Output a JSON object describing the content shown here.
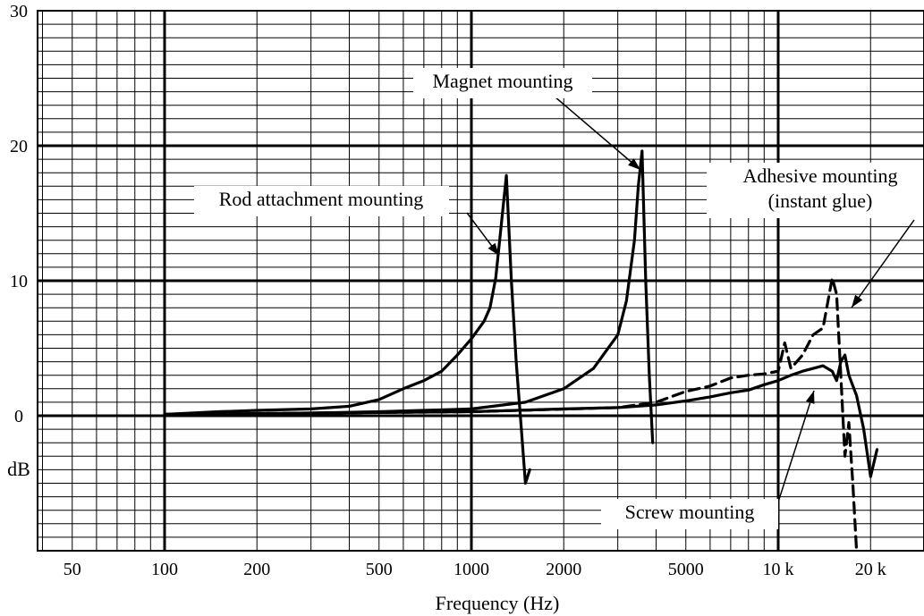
{
  "chart_data": {
    "type": "line",
    "xlabel": "Frequency (Hz)",
    "ylabel": "dB",
    "x_scale": "log",
    "xlim": [
      40,
      30000
    ],
    "ylim": [
      -10,
      30
    ],
    "grid": true,
    "x_ticks": [
      {
        "value": 50,
        "label": "50"
      },
      {
        "value": 100,
        "label": "100"
      },
      {
        "value": 200,
        "label": "200"
      },
      {
        "value": 500,
        "label": "500"
      },
      {
        "value": 1000,
        "label": "1000"
      },
      {
        "value": 2000,
        "label": "2000"
      },
      {
        "value": 5000,
        "label": "5000"
      },
      {
        "value": 10000,
        "label": "10 k"
      },
      {
        "value": 20000,
        "label": "20 k"
      }
    ],
    "y_ticks": [
      {
        "value": 30,
        "label": "30"
      },
      {
        "value": 20,
        "label": "20"
      },
      {
        "value": 10,
        "label": "10"
      },
      {
        "value": 0,
        "label": "0"
      }
    ],
    "series": [
      {
        "name": "Rod attachment mounting",
        "style": "solid",
        "x": [
          100,
          150,
          200,
          300,
          400,
          500,
          600,
          700,
          800,
          900,
          1000,
          1100,
          1150,
          1200,
          1250,
          1300,
          1350,
          1400,
          1450,
          1500,
          1550
        ],
        "y": [
          0.1,
          0.3,
          0.4,
          0.5,
          0.7,
          1.2,
          2.0,
          2.6,
          3.3,
          4.5,
          5.7,
          7.0,
          8.0,
          10.2,
          14.0,
          17.8,
          10.0,
          4.0,
          -0.5,
          -5.0,
          -4.0
        ]
      },
      {
        "name": "Magnet mounting",
        "style": "solid",
        "x": [
          100,
          200,
          300,
          500,
          700,
          1000,
          1500,
          2000,
          2500,
          3000,
          3200,
          3400,
          3500,
          3600,
          3700,
          3800,
          3900
        ],
        "y": [
          0.1,
          0.1,
          0.2,
          0.3,
          0.4,
          0.5,
          1.0,
          2.0,
          3.5,
          6.0,
          8.5,
          13.0,
          17.0,
          19.6,
          10.0,
          3.0,
          -2.0
        ]
      },
      {
        "name": "Adhesive mounting (instant glue)",
        "style": "dashed",
        "x": [
          100,
          300,
          1000,
          3000,
          4000,
          5000,
          6000,
          7000,
          8000,
          9000,
          10000,
          10500,
          11000,
          12000,
          13000,
          14000,
          15000,
          15500,
          16000,
          16500,
          17000,
          17500,
          18000
        ],
        "y": [
          0.1,
          0.2,
          0.3,
          0.6,
          1.0,
          1.8,
          2.2,
          2.8,
          3.0,
          3.1,
          3.3,
          5.4,
          3.5,
          4.5,
          6.0,
          6.5,
          10.2,
          9.0,
          3.0,
          -3.0,
          -0.5,
          -5.0,
          -10.0
        ]
      },
      {
        "name": "Screw mounting",
        "style": "solid",
        "x": [
          100,
          300,
          1000,
          2000,
          3000,
          4000,
          5000,
          6000,
          7000,
          8000,
          9000,
          10000,
          11000,
          12000,
          13000,
          14000,
          15000,
          15500,
          16000,
          16500,
          17000,
          18000,
          19000,
          20000,
          21000
        ],
        "y": [
          0.1,
          0.2,
          0.3,
          0.5,
          0.6,
          0.8,
          1.1,
          1.4,
          1.7,
          1.9,
          2.3,
          2.6,
          3.0,
          3.3,
          3.5,
          3.7,
          3.3,
          2.6,
          4.0,
          4.5,
          3.0,
          1.5,
          -1.0,
          -4.5,
          -2.5
        ]
      }
    ],
    "annotations": [
      {
        "lines": [
          "Magnet mounting"
        ]
      },
      {
        "lines": [
          "Rod attachment mounting"
        ]
      },
      {
        "lines": [
          "Adhesive mounting",
          "(instant glue)"
        ]
      },
      {
        "lines": [
          "Screw mounting"
        ]
      }
    ]
  }
}
